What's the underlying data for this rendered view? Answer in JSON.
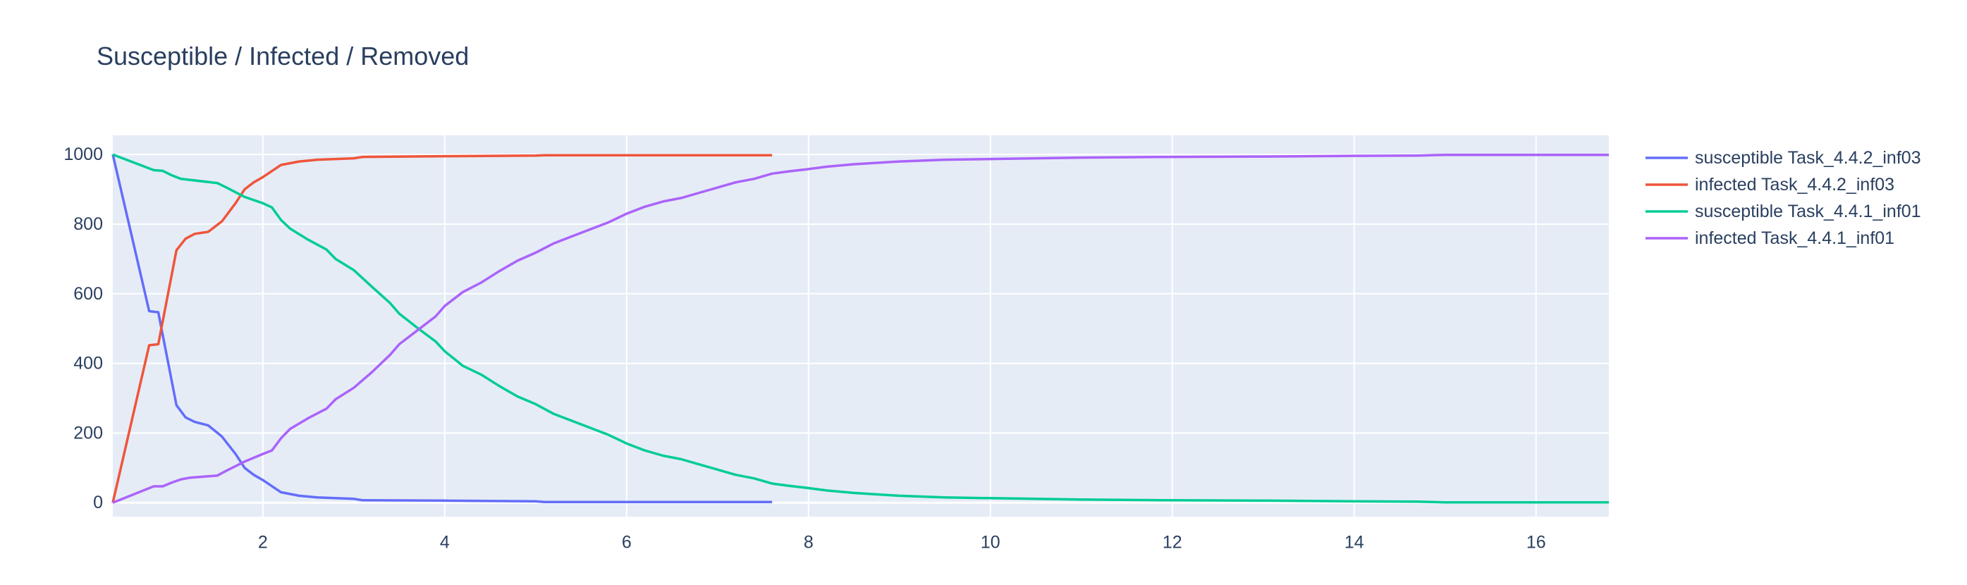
{
  "chart_data": {
    "type": "line",
    "title": "Susceptible / Infected / Removed",
    "xlabel": "",
    "ylabel": "",
    "xlim": [
      0.35,
      16.8
    ],
    "ylim": [
      -40,
      1055
    ],
    "x_ticks": [
      2,
      4,
      6,
      8,
      10,
      12,
      14,
      16
    ],
    "y_ticks": [
      0,
      200,
      400,
      600,
      800,
      1000
    ],
    "grid": true,
    "legend_position": "right",
    "plot_background": "#e5ecf6",
    "series": [
      {
        "name": "susceptible Task_4.4.2_inf03",
        "color": "#636efa",
        "points": [
          [
            0.35,
            1000
          ],
          [
            0.75,
            550
          ],
          [
            0.85,
            547
          ],
          [
            1.05,
            280
          ],
          [
            1.15,
            245
          ],
          [
            1.25,
            232
          ],
          [
            1.4,
            222
          ],
          [
            1.55,
            190
          ],
          [
            1.7,
            140
          ],
          [
            1.8,
            100
          ],
          [
            1.9,
            80
          ],
          [
            2.0,
            65
          ],
          [
            2.2,
            30
          ],
          [
            2.4,
            20
          ],
          [
            2.6,
            15
          ],
          [
            3.0,
            11
          ],
          [
            3.1,
            7
          ],
          [
            4.0,
            6
          ],
          [
            5.0,
            4
          ],
          [
            5.1,
            2
          ],
          [
            6.0,
            2
          ],
          [
            7.6,
            2
          ]
        ]
      },
      {
        "name": "infected Task_4.4.2_inf03",
        "color": "#ef553b",
        "points": [
          [
            0.35,
            0
          ],
          [
            0.75,
            452
          ],
          [
            0.85,
            455
          ],
          [
            1.05,
            725
          ],
          [
            1.15,
            758
          ],
          [
            1.25,
            772
          ],
          [
            1.4,
            778
          ],
          [
            1.55,
            808
          ],
          [
            1.7,
            860
          ],
          [
            1.8,
            900
          ],
          [
            1.9,
            920
          ],
          [
            2.0,
            935
          ],
          [
            2.2,
            970
          ],
          [
            2.4,
            980
          ],
          [
            2.6,
            985
          ],
          [
            3.0,
            989
          ],
          [
            3.1,
            993
          ],
          [
            4.0,
            995
          ],
          [
            5.0,
            997
          ],
          [
            5.1,
            998
          ],
          [
            6.0,
            998
          ],
          [
            7.6,
            998
          ]
        ]
      },
      {
        "name": "susceptible Task_4.4.1_inf01",
        "color": "#00cc96",
        "points": [
          [
            0.35,
            1000
          ],
          [
            0.8,
            955
          ],
          [
            0.9,
            953
          ],
          [
            1.0,
            940
          ],
          [
            1.1,
            930
          ],
          [
            1.2,
            927
          ],
          [
            1.5,
            918
          ],
          [
            1.6,
            905
          ],
          [
            1.8,
            878
          ],
          [
            2.0,
            860
          ],
          [
            2.1,
            848
          ],
          [
            2.2,
            812
          ],
          [
            2.3,
            787
          ],
          [
            2.5,
            755
          ],
          [
            2.7,
            727
          ],
          [
            2.8,
            700
          ],
          [
            3.0,
            668
          ],
          [
            3.2,
            620
          ],
          [
            3.4,
            573
          ],
          [
            3.5,
            543
          ],
          [
            3.7,
            502
          ],
          [
            3.9,
            463
          ],
          [
            4.0,
            435
          ],
          [
            4.2,
            393
          ],
          [
            4.4,
            368
          ],
          [
            4.6,
            335
          ],
          [
            4.8,
            305
          ],
          [
            5.0,
            283
          ],
          [
            5.2,
            255
          ],
          [
            5.4,
            235
          ],
          [
            5.6,
            215
          ],
          [
            5.8,
            195
          ],
          [
            6.0,
            170
          ],
          [
            6.2,
            150
          ],
          [
            6.4,
            135
          ],
          [
            6.6,
            125
          ],
          [
            6.8,
            110
          ],
          [
            7.0,
            95
          ],
          [
            7.2,
            80
          ],
          [
            7.4,
            70
          ],
          [
            7.6,
            55
          ],
          [
            7.8,
            48
          ],
          [
            8.0,
            42
          ],
          [
            8.2,
            35
          ],
          [
            8.5,
            28
          ],
          [
            9.0,
            20
          ],
          [
            9.5,
            15
          ],
          [
            10,
            13
          ],
          [
            10.5,
            11
          ],
          [
            11,
            9
          ],
          [
            12,
            7
          ],
          [
            13,
            6
          ],
          [
            14,
            4
          ],
          [
            14.7,
            3
          ],
          [
            15,
            1
          ],
          [
            16,
            1
          ],
          [
            16.8,
            1
          ]
        ]
      },
      {
        "name": "infected Task_4.4.1_inf01",
        "color": "#ab63fa",
        "points": [
          [
            0.35,
            0
          ],
          [
            0.8,
            47
          ],
          [
            0.9,
            47
          ],
          [
            1.0,
            58
          ],
          [
            1.1,
            67
          ],
          [
            1.2,
            72
          ],
          [
            1.5,
            78
          ],
          [
            1.6,
            92
          ],
          [
            1.8,
            118
          ],
          [
            2.0,
            140
          ],
          [
            2.1,
            150
          ],
          [
            2.2,
            185
          ],
          [
            2.3,
            212
          ],
          [
            2.5,
            243
          ],
          [
            2.7,
            270
          ],
          [
            2.8,
            297
          ],
          [
            3.0,
            330
          ],
          [
            3.2,
            375
          ],
          [
            3.4,
            425
          ],
          [
            3.5,
            455
          ],
          [
            3.7,
            495
          ],
          [
            3.9,
            535
          ],
          [
            4.0,
            565
          ],
          [
            4.2,
            605
          ],
          [
            4.4,
            632
          ],
          [
            4.6,
            665
          ],
          [
            4.8,
            695
          ],
          [
            5.0,
            718
          ],
          [
            5.2,
            745
          ],
          [
            5.4,
            765
          ],
          [
            5.6,
            785
          ],
          [
            5.8,
            805
          ],
          [
            6.0,
            830
          ],
          [
            6.2,
            850
          ],
          [
            6.4,
            865
          ],
          [
            6.6,
            875
          ],
          [
            6.8,
            890
          ],
          [
            7.0,
            905
          ],
          [
            7.2,
            920
          ],
          [
            7.4,
            930
          ],
          [
            7.6,
            945
          ],
          [
            7.8,
            952
          ],
          [
            8.0,
            958
          ],
          [
            8.2,
            965
          ],
          [
            8.5,
            972
          ],
          [
            9.0,
            980
          ],
          [
            9.5,
            985
          ],
          [
            10,
            987
          ],
          [
            10.5,
            989
          ],
          [
            11,
            991
          ],
          [
            12,
            993
          ],
          [
            13,
            994
          ],
          [
            14,
            996
          ],
          [
            14.7,
            997
          ],
          [
            15,
            999
          ],
          [
            16,
            999
          ],
          [
            16.8,
            999
          ]
        ]
      }
    ]
  }
}
